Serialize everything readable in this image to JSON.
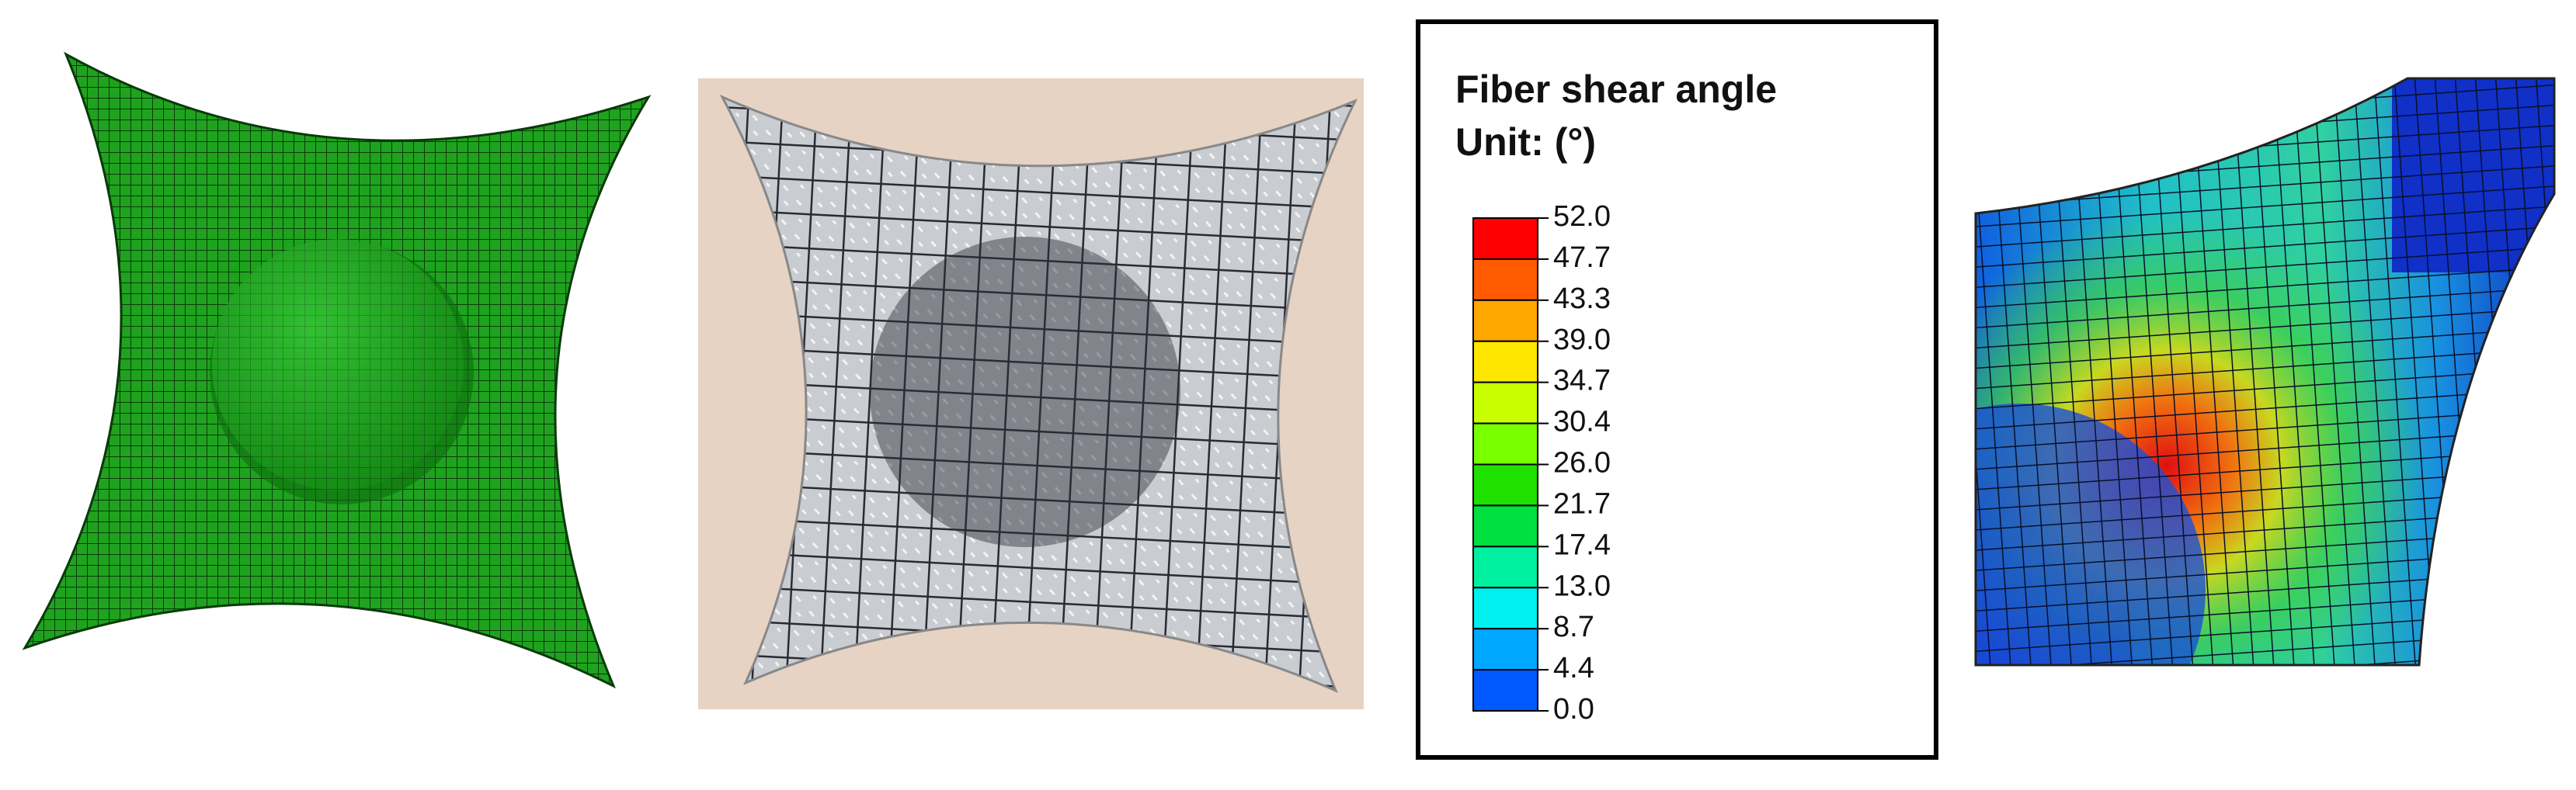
{
  "legend": {
    "title": [
      "Fiber shear angle",
      "Unit: (°)"
    ],
    "ticks": [
      "52.0",
      "47.7",
      "43.3",
      "39.0",
      "34.7",
      "30.4",
      "26.0",
      "21.7",
      "17.4",
      "13.0",
      "8.7",
      "4.4",
      "0.0"
    ]
  }
}
